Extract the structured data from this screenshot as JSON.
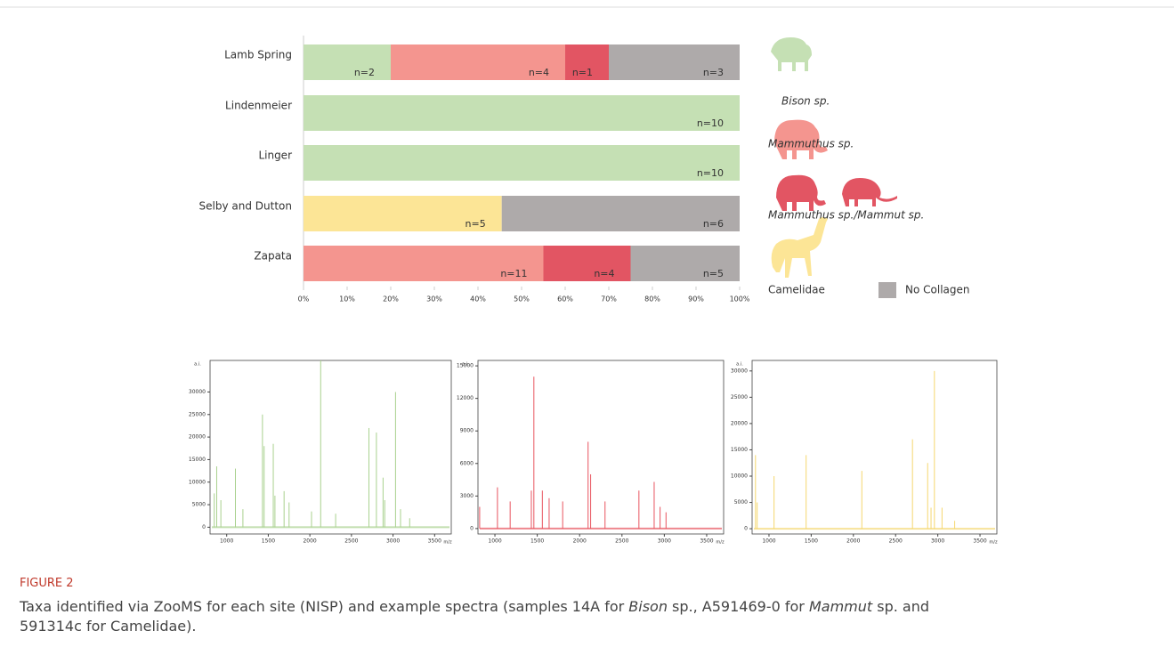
{
  "figure": {
    "label": "FIGURE 2",
    "caption": [
      "Taxa identified via ZooMS for each site (NISP) and example spectra (samples 14A for ",
      "Bison",
      " sp., A591469-0 for ",
      "Mammut",
      " sp. and 591314c for Camelidae)."
    ]
  },
  "chart_data": [
    {
      "type": "stacked-barh",
      "categories": [
        "Lamb Spring",
        "Lindenmeier",
        "Linger",
        "Selby and Dutton",
        "Zapata"
      ],
      "series": [
        {
          "name": "Bison sp.",
          "color": "#c5e0b4",
          "values": [
            20,
            100,
            100,
            0,
            0
          ],
          "count_labels": [
            "n=2",
            "n=10",
            "n=10",
            null,
            null
          ]
        },
        {
          "name": "Mammuthus sp.",
          "color": "#f4958f",
          "values": [
            40,
            0,
            0,
            0,
            55
          ],
          "count_labels": [
            "n=4",
            null,
            null,
            null,
            "n=11"
          ]
        },
        {
          "name": "Mammuthus sp./Mammut sp.",
          "color": "#e25563",
          "values": [
            10,
            0,
            0,
            0,
            20
          ],
          "count_labels": [
            "n=1",
            null,
            null,
            null,
            "n=4"
          ]
        },
        {
          "name": "Camelidae",
          "color": "#fce596",
          "values": [
            0,
            0,
            0,
            45.45,
            0
          ],
          "count_labels": [
            null,
            null,
            null,
            "n=5",
            null
          ]
        },
        {
          "name": "No Collagen",
          "color": "#aeaaaa",
          "values": [
            30,
            0,
            0,
            54.55,
            25
          ],
          "count_labels": [
            "n=3",
            null,
            null,
            "n=6",
            "n=5"
          ]
        }
      ],
      "xlim": [
        0,
        100
      ],
      "xticks": [
        {
          "value": 0,
          "label": "0%"
        },
        {
          "value": 10,
          "label": "10%"
        },
        {
          "value": 20,
          "label": "20%"
        },
        {
          "value": 30,
          "label": "30%"
        },
        {
          "value": 40,
          "label": "40%"
        },
        {
          "value": 50,
          "label": "50%"
        },
        {
          "value": 60,
          "label": "60%"
        },
        {
          "value": 70,
          "label": "70%"
        },
        {
          "value": 80,
          "label": "80%"
        },
        {
          "value": 90,
          "label": "90%"
        },
        {
          "value": 100,
          "label": "100%"
        }
      ]
    },
    {
      "type": "spectrum",
      "color": "#a9d18e",
      "ylabel": "a.i.",
      "xlabel": "m/z",
      "x": [
        850,
        880,
        930,
        1105,
        1195,
        1430,
        1450,
        1560,
        1580,
        1690,
        1750,
        2020,
        2130,
        2310,
        2710,
        2800,
        2880,
        2900,
        3030,
        3090,
        3200
      ],
      "values": [
        7500,
        13500,
        6000,
        13000,
        4000,
        25000,
        18000,
        18500,
        7000,
        8000,
        5500,
        3500,
        37000,
        3000,
        22000,
        21000,
        11000,
        6000,
        30000,
        4000,
        2000
      ],
      "xlim": [
        800,
        3700
      ],
      "ylim": [
        -1500,
        37000
      ],
      "xticks": [
        1000,
        1500,
        2000,
        2500,
        3000,
        3500
      ],
      "yticks": [
        0,
        5000,
        10000,
        15000,
        20000,
        25000,
        30000
      ]
    },
    {
      "type": "spectrum",
      "color": "#e8545f",
      "ylabel": "a.i.",
      "xlabel": "m/z",
      "x": [
        820,
        1030,
        1180,
        1430,
        1460,
        1560,
        1640,
        1800,
        2100,
        2130,
        2300,
        2700,
        2880,
        2950,
        3020
      ],
      "values": [
        2000,
        3800,
        2500,
        3500,
        14000,
        3500,
        2800,
        2500,
        8000,
        5000,
        2500,
        3500,
        4300,
        2000,
        1500
      ],
      "xlim": [
        800,
        3700
      ],
      "ylim": [
        -500,
        15500
      ],
      "xticks": [
        1000,
        1500,
        2000,
        2500,
        3000,
        3500
      ],
      "yticks": [
        0,
        3000,
        6000,
        9000,
        12000,
        15000
      ]
    },
    {
      "type": "spectrum",
      "color": "#f5d76e",
      "ylabel": "a.i.",
      "xlabel": "m/z",
      "x": [
        840,
        860,
        1060,
        1440,
        2100,
        2700,
        2880,
        2920,
        2960,
        3050,
        3200
      ],
      "values": [
        14000,
        5000,
        10000,
        14000,
        11000,
        17000,
        12500,
        4000,
        30000,
        4000,
        1500
      ],
      "xlim": [
        800,
        3700
      ],
      "ylim": [
        -1000,
        32000
      ],
      "xticks": [
        1000,
        1500,
        2000,
        2500,
        3000,
        3500
      ],
      "yticks": [
        0,
        5000,
        10000,
        15000,
        20000,
        25000,
        30000
      ]
    }
  ]
}
